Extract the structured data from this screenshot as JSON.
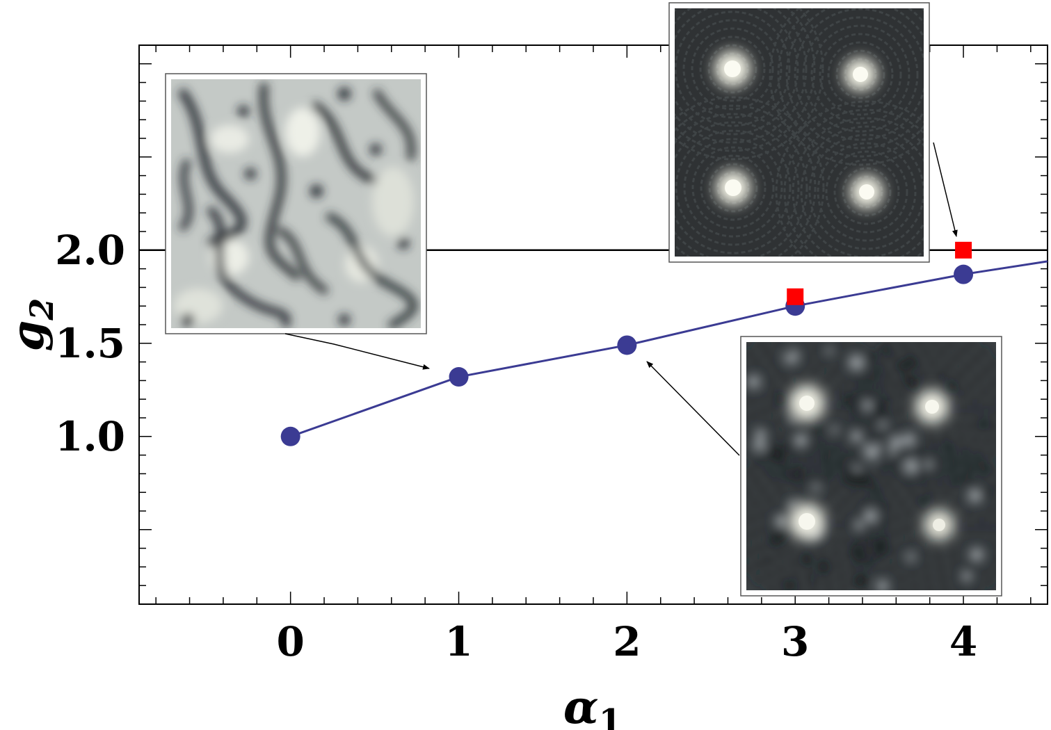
{
  "chart_data": {
    "type": "scatter",
    "xlabel": "α1",
    "ylabel": "g2",
    "xlim": [
      -0.9,
      4.5
    ],
    "ylim": [
      0.1,
      3.1
    ],
    "x_ticks": [
      0,
      1,
      2,
      3,
      4
    ],
    "y_ticks": [
      1.0,
      1.5,
      2.0
    ],
    "x_tick_labels": [
      "0",
      "1",
      "2",
      "3",
      "4"
    ],
    "y_tick_labels": [
      "1.0",
      "1.5",
      "2.0"
    ],
    "reference_line": {
      "y": 2.0,
      "color": "#000000"
    },
    "grid": false,
    "series": [
      {
        "style": "line+circles",
        "color": "#3b3b93",
        "points": [
          [
            0,
            1.0
          ],
          [
            1,
            1.32
          ],
          [
            2,
            1.49
          ],
          [
            3,
            1.7
          ],
          [
            4,
            1.87
          ]
        ],
        "line_extension": [
          [
            4,
            1.87
          ],
          [
            4.5,
            1.94
          ]
        ]
      },
      {
        "style": "squares",
        "color": "#ff0000",
        "points": [
          [
            3,
            1.75
          ],
          [
            4,
            2.0
          ]
        ]
      }
    ],
    "insets": [
      {
        "kind": "disordered-field-image",
        "points_to": [
          0.85,
          1.34
        ]
      },
      {
        "kind": "four-vortex-lattice-image",
        "points_to": [
          3.95,
          2.07
        ]
      },
      {
        "kind": "noisy-four-vortex-image",
        "points_to": [
          2.12,
          1.45
        ]
      }
    ]
  }
}
